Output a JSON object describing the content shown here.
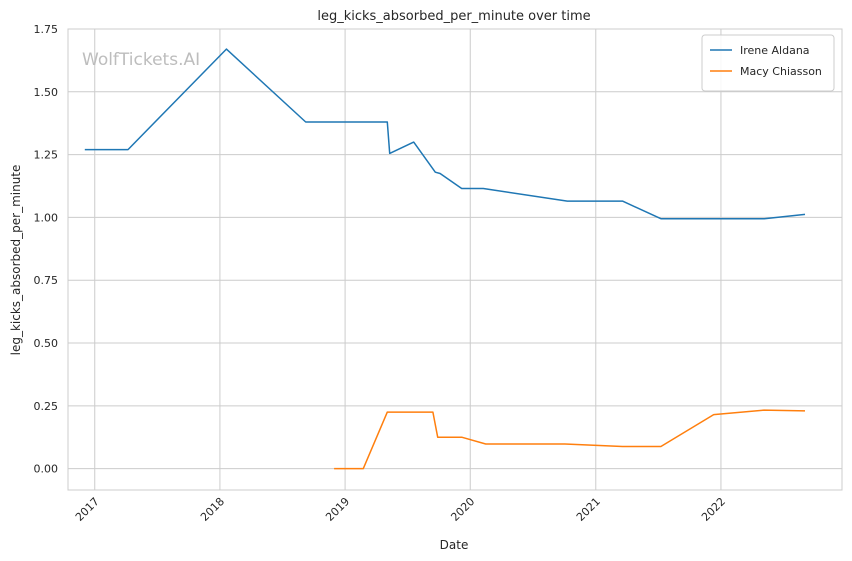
{
  "watermark": "WolfTickets.AI",
  "chart_data": {
    "type": "line",
    "title": "leg_kicks_absorbed_per_minute over time",
    "xlabel": "Date",
    "ylabel": "leg_kicks_absorbed_per_minute",
    "xlim": [
      "2016-10-15",
      "2022-12-20"
    ],
    "ylim": [
      -0.085,
      1.75
    ],
    "x_ticks": [
      {
        "date": "2017-01-01",
        "label": "2017"
      },
      {
        "date": "2018-01-01",
        "label": "2018"
      },
      {
        "date": "2019-01-01",
        "label": "2019"
      },
      {
        "date": "2020-01-01",
        "label": "2020"
      },
      {
        "date": "2021-01-01",
        "label": "2021"
      },
      {
        "date": "2022-01-01",
        "label": "2022"
      }
    ],
    "y_ticks": [
      {
        "value": 0.0,
        "label": "0.00"
      },
      {
        "value": 0.25,
        "label": "0.25"
      },
      {
        "value": 0.5,
        "label": "0.50"
      },
      {
        "value": 0.75,
        "label": "0.75"
      },
      {
        "value": 1.0,
        "label": "1.00"
      },
      {
        "value": 1.25,
        "label": "1.25"
      },
      {
        "value": 1.5,
        "label": "1.50"
      },
      {
        "value": 1.75,
        "label": "1.75"
      }
    ],
    "grid": true,
    "legend_position": "top-right",
    "series": [
      {
        "name": "Irene Aldana",
        "color": "#1f77b4",
        "points": [
          {
            "x": "2016-12-03",
            "y": 1.27
          },
          {
            "x": "2017-04-08",
            "y": 1.27
          },
          {
            "x": "2018-01-20",
            "y": 1.67
          },
          {
            "x": "2018-09-08",
            "y": 1.38
          },
          {
            "x": "2019-05-04",
            "y": 1.38
          },
          {
            "x": "2019-05-11",
            "y": 1.255
          },
          {
            "x": "2019-07-20",
            "y": 1.3
          },
          {
            "x": "2019-09-21",
            "y": 1.18
          },
          {
            "x": "2019-10-05",
            "y": 1.175
          },
          {
            "x": "2019-12-07",
            "y": 1.115
          },
          {
            "x": "2020-02-08",
            "y": 1.115
          },
          {
            "x": "2020-10-10",
            "y": 1.065
          },
          {
            "x": "2021-03-20",
            "y": 1.065
          },
          {
            "x": "2021-07-10",
            "y": 0.995
          },
          {
            "x": "2022-05-07",
            "y": 0.995
          },
          {
            "x": "2022-09-03",
            "y": 1.012
          }
        ]
      },
      {
        "name": "Macy Chiasson",
        "color": "#ff7f0e",
        "points": [
          {
            "x": "2018-11-30",
            "y": 0.0
          },
          {
            "x": "2019-02-23",
            "y": 0.0
          },
          {
            "x": "2019-05-04",
            "y": 0.225
          },
          {
            "x": "2019-09-14",
            "y": 0.225
          },
          {
            "x": "2019-09-28",
            "y": 0.125
          },
          {
            "x": "2019-12-07",
            "y": 0.125
          },
          {
            "x": "2020-02-15",
            "y": 0.098
          },
          {
            "x": "2020-10-03",
            "y": 0.098
          },
          {
            "x": "2021-03-20",
            "y": 0.088
          },
          {
            "x": "2021-07-10",
            "y": 0.088
          },
          {
            "x": "2021-12-11",
            "y": 0.215
          },
          {
            "x": "2022-05-07",
            "y": 0.233
          },
          {
            "x": "2022-09-03",
            "y": 0.23
          }
        ]
      }
    ]
  }
}
